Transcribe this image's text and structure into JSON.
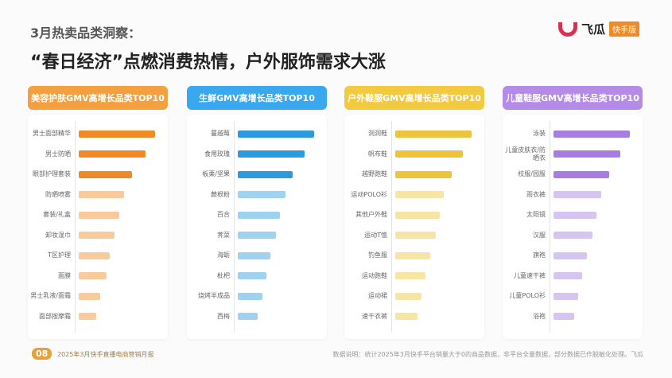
{
  "header": {
    "subtitle": "3月热卖品类洞察：",
    "title": "“春日经济”点燃消费热情，户外服饰需求大涨",
    "logo_name": "飞瓜",
    "logo_tag": "快手版"
  },
  "footer": {
    "page": "08",
    "report": "2025年3月快手直播电商营销月报",
    "note": "数据说明：统计2025年3月快手平台销量大于0的商品数据，非平台全量数据，部分数据已作脱敏化处理。飞瓜"
  },
  "chart_data": [
    {
      "type": "bar",
      "orientation": "horizontal",
      "title": "美容护肤GMV高增长品类TOP10",
      "color": "#f08a24",
      "header_color": "#f5a040",
      "categories": [
        "男士面部精华",
        "男士防晒",
        "眼部护理套装",
        "防晒喷雾",
        "套装/礼盒",
        "卸妆湿巾",
        "T区护理",
        "面膜",
        "男士乳液/面霜",
        "面部按摩霜"
      ],
      "values": [
        100,
        88,
        70,
        59,
        53,
        47,
        41,
        36,
        28,
        23
      ]
    },
    {
      "type": "bar",
      "orientation": "horizontal",
      "title": "生鲜GMV高增长品类TOP10",
      "color": "#2b9be0",
      "header_color": "#3aa8ee",
      "categories": [
        "蔓越莓",
        "食用玫瑰",
        "板栗/坚果",
        "蕨根粉",
        "百合",
        "荠菜",
        "海蛎",
        "枇杷",
        "烧烤半成品",
        "西梅"
      ],
      "values": [
        100,
        88,
        72,
        62,
        55,
        50,
        43,
        37,
        32,
        26
      ]
    },
    {
      "type": "bar",
      "orientation": "horizontal",
      "title": "户外鞋服GMV高增长品类TOP10",
      "color": "#eec53a",
      "header_color": "#f3c940",
      "categories": [
        "洞洞鞋",
        "帆布鞋",
        "越野跑鞋",
        "运动POLO衫",
        "其他户外鞋",
        "运动T恤",
        "钓鱼服",
        "运动跑鞋",
        "运动裙",
        "速干衣裤"
      ],
      "values": [
        100,
        89,
        74,
        64,
        58,
        53,
        46,
        40,
        34,
        29
      ]
    },
    {
      "type": "bar",
      "orientation": "horizontal",
      "title": "儿童鞋服GMV高增长品类TOP10",
      "color": "#a77ee0",
      "header_color": "#b58be8",
      "categories": [
        "泳装",
        "儿童皮肤衣/防晒衣",
        "校服/园服",
        "雨衣裤",
        "太阳镜",
        "汉服",
        "旗袍",
        "儿童速干裤",
        "儿童POLO衫",
        "浴袍"
      ],
      "values": [
        100,
        88,
        73,
        63,
        56,
        51,
        44,
        38,
        32,
        27
      ]
    }
  ]
}
